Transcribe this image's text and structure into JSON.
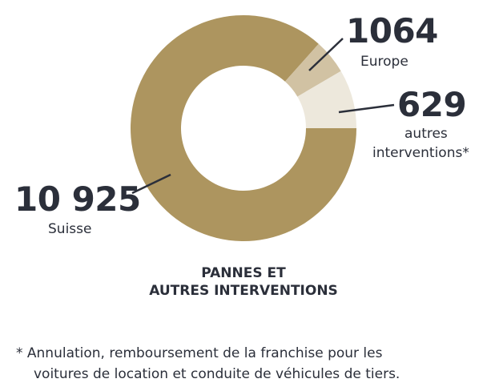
{
  "colors": {
    "text": "#2b2f3a",
    "leader": "#2b2f3a"
  },
  "chart_data": {
    "type": "pie",
    "variant": "donut",
    "title": "PANNES ET AUTRES INTERVENTIONS",
    "title_lines": [
      "PANNES ET",
      "AUTRES INTERVENTIONS"
    ],
    "slices": [
      {
        "value_label": "10 925",
        "value": 10925,
        "name_lines": [
          "Suisse"
        ],
        "color": "#ad955f"
      },
      {
        "value_label": "1064",
        "value": 1064,
        "name_lines": [
          "Europe"
        ],
        "color": "#ede8dc"
      },
      {
        "value_label": "629",
        "value": 629,
        "name_lines": [
          "autres",
          "interventions*"
        ],
        "color": "#d1c2a3"
      }
    ]
  },
  "footnote": {
    "line1": "* Annulation, remboursement de la franchise pour les",
    "line2": "voitures de location et conduite de véhicules de tiers."
  }
}
